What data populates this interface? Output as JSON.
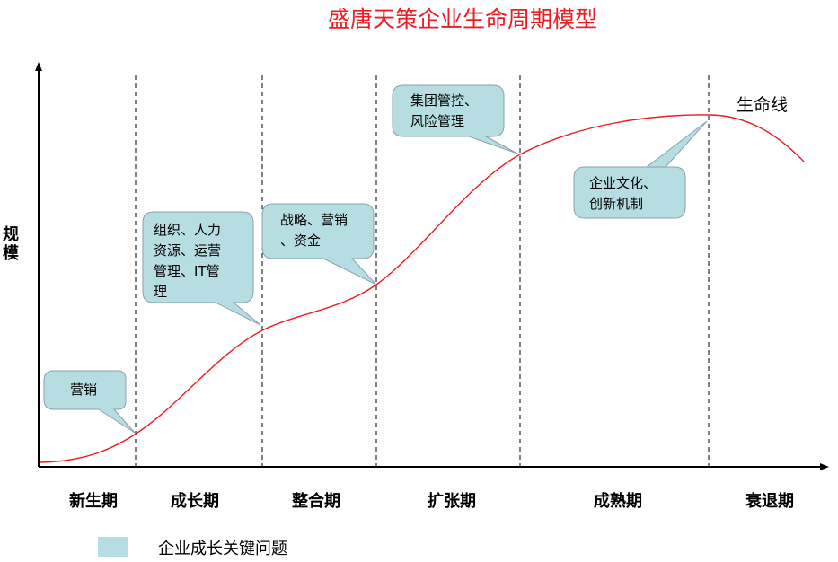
{
  "title": "盛唐天策企业生命周期模型",
  "y_axis_label": "规\n模",
  "curve_label": "生命线",
  "phases": [
    "新生期",
    "成长期",
    "整合期",
    "扩张期",
    "成熟期",
    "衰退期"
  ],
  "key_issues": [
    "营销",
    "组织、人力\n资源、运营\n管理、IT管\n理",
    "战略、营销\n、资金",
    "集团管控、\n风险管理",
    "企业文化、\n创新机制"
  ],
  "legend": {
    "label": "企业成长关键问题",
    "color": "#b6dde2"
  },
  "colors": {
    "title": "#ee1c24",
    "curve": "#ee1c24",
    "bubble_fill": "#b6dde2",
    "bubble_stroke": "#8aa2ae"
  }
}
